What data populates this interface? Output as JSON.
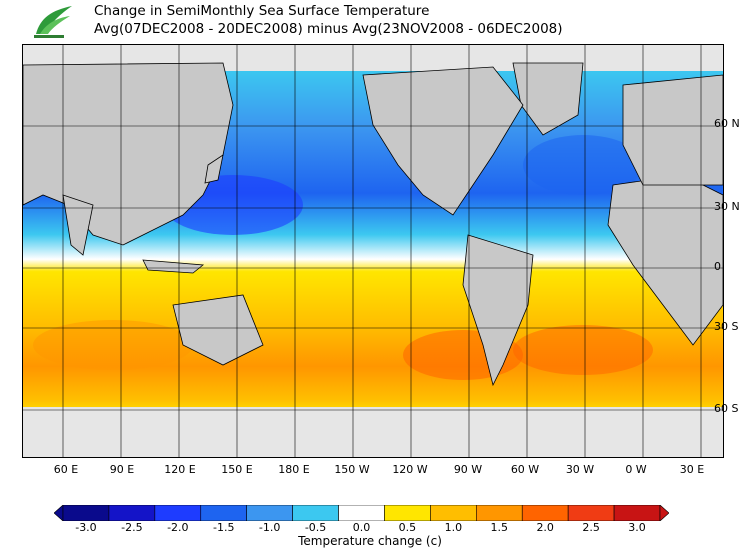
{
  "title": {
    "line1": "Change in SemiMonthly Sea Surface Temperature",
    "line2": "Avg(07DEC2008 - 20DEC2008) minus Avg(23NOV2008 - 06DEC2008)"
  },
  "map": {
    "lat_labels": [
      "60 N",
      "30 N",
      "0",
      "30 S",
      "60 S"
    ],
    "lon_labels": [
      "60 E",
      "90 E",
      "120 E",
      "150 E",
      "180 E",
      "150 W",
      "120 W",
      "90 W",
      "60 W",
      "30 W",
      "0 W",
      "30 E"
    ],
    "land_color": "#c8c8c8",
    "ice_color": "#e6e6e6"
  },
  "colorbar": {
    "ticks": [
      "-3.0",
      "-2.5",
      "-2.0",
      "-1.5",
      "-1.0",
      "-0.5",
      "0.0",
      "0.5",
      "1.0",
      "1.5",
      "2.0",
      "2.5",
      "3.0"
    ],
    "colors": [
      "#0a0a8c",
      "#1414c8",
      "#1e3cff",
      "#1e64f0",
      "#3c96f0",
      "#3cc8f0",
      "#ffffff",
      "#ffe600",
      "#ffbe00",
      "#ff9600",
      "#ff6400",
      "#f03c14",
      "#c81414"
    ],
    "caption": "Temperature change  (c)"
  }
}
